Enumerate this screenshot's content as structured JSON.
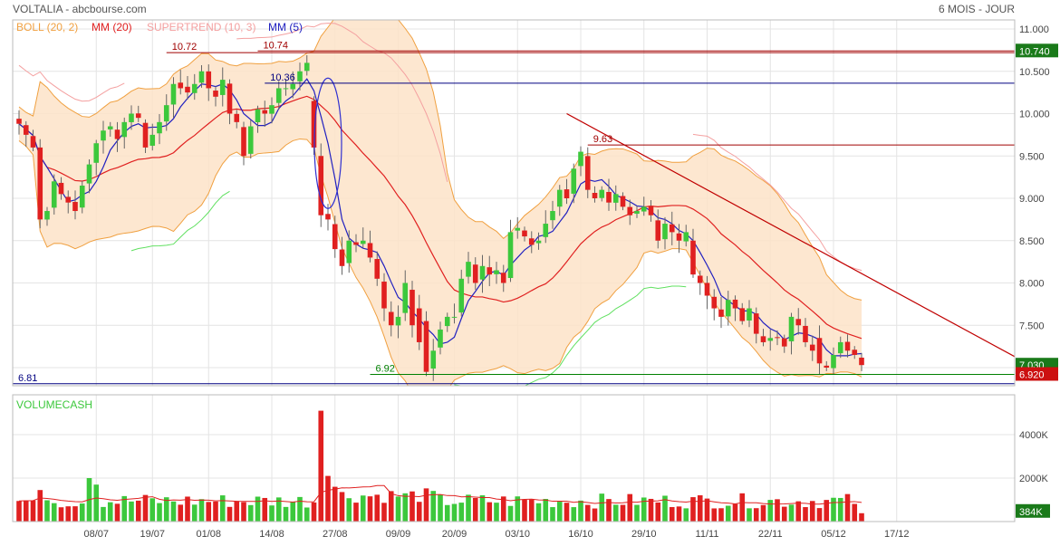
{
  "header": {
    "title": "VOLTALIA - abcbourse.com",
    "period": "6 MOIS - JOUR"
  },
  "legend": [
    {
      "label": "BOLL (20, 2)",
      "color": "#f0a040"
    },
    {
      "label": "MM (20)",
      "color": "#e02020"
    },
    {
      "label": "SUPERTREND (10, 3)",
      "color": "#f4a0a0"
    },
    {
      "label": "MM (5)",
      "color": "#2020c0"
    }
  ],
  "colors": {
    "up": "#3cc83c",
    "down": "#e02020",
    "boll_fill": "#fde3c8",
    "boll_line": "#f0a040",
    "mm20": "#e02020",
    "mm5": "#2020c0",
    "supertrend_down": "#f4a0a0",
    "supertrend_up": "#60e060",
    "level_red": "#a00000",
    "level_blue": "#000080",
    "level_green": "#008000",
    "trendline": "#c00000",
    "grid": "#e4e4e4"
  },
  "chart_data": [
    {
      "type": "candlestick",
      "title": "VOLTALIA - abcbourse.com",
      "ylim": [
        6.81,
        11.1
      ],
      "y_ticks": [
        "11.000",
        "10.500",
        "10.000",
        "9.500",
        "9.000",
        "8.500",
        "8.000",
        "7.500",
        "7.000"
      ],
      "y_tick_values": [
        11.0,
        10.5,
        10.0,
        9.5,
        9.0,
        8.5,
        8.0,
        7.5,
        7.0
      ],
      "x_labels": [
        "08/07",
        "19/07",
        "01/08",
        "14/08",
        "27/08",
        "09/09",
        "20/09",
        "03/10",
        "16/10",
        "29/10",
        "11/11",
        "22/11",
        "05/12",
        "17/12"
      ],
      "x_label_index": [
        11,
        19,
        27,
        36,
        45,
        54,
        62,
        71,
        80,
        89,
        98,
        107,
        116,
        125
      ],
      "grid": true,
      "close_key": [
        9.88,
        9.75,
        9.6,
        8.75,
        8.85,
        9.2,
        9.05,
        8.95,
        8.85,
        9.15,
        9.4,
        9.65,
        9.8,
        9.85,
        9.7,
        9.9,
        10.0,
        9.95,
        9.6,
        9.75,
        9.9,
        10.1,
        10.35,
        10.3,
        10.25,
        10.35,
        10.5,
        10.3,
        10.2,
        10.4,
        10.0,
        9.9,
        9.5,
        9.85,
        10.05,
        10.0,
        10.1,
        10.3,
        10.3,
        10.35,
        10.5,
        10.6,
        9.6,
        8.8,
        8.75,
        8.4,
        8.2,
        8.5,
        8.45,
        8.5,
        8.3,
        8.05,
        7.7,
        7.5,
        7.6,
        8.0,
        7.5,
        7.3,
        6.95,
        7.2,
        7.45,
        7.6,
        7.6,
        8.05,
        8.25,
        8.0,
        8.2,
        8.1,
        8.15,
        8.0,
        8.6,
        8.65,
        8.55,
        8.45,
        8.5,
        8.7,
        8.85,
        9.1,
        9.0,
        9.35,
        9.55,
        9.1,
        9.0,
        9.1,
        8.95,
        9.05,
        8.9,
        8.8,
        8.85,
        8.9,
        8.8,
        8.5,
        8.7,
        8.6,
        8.5,
        8.6,
        8.1,
        8.0,
        7.85,
        7.7,
        7.6,
        7.8,
        7.7,
        7.55,
        7.7,
        7.4,
        7.3,
        7.35,
        7.35,
        7.25,
        7.6,
        7.5,
        7.3,
        7.2,
        7.05,
        7.0,
        7.15,
        7.3,
        7.2,
        7.15,
        7.03
      ],
      "series": [
        {
          "name": "VOLTALIA",
          "last": 7.03
        },
        {
          "name": "BOLL (20, 2)"
        },
        {
          "name": "MM (20)"
        },
        {
          "name": "SUPERTREND (10, 3)"
        },
        {
          "name": "MM (5)"
        }
      ],
      "horizontal_levels": [
        {
          "label": "10.72",
          "value": 10.72,
          "color": "#a00000"
        },
        {
          "label": "10.74",
          "value": 10.74,
          "color": "#a00000"
        },
        {
          "label": "10.36",
          "value": 10.36,
          "color": "#000080"
        },
        {
          "label": "9.63",
          "value": 9.63,
          "color": "#a00000"
        },
        {
          "label": "6.92",
          "value": 6.92,
          "color": "#008000"
        },
        {
          "label": "6.81",
          "value": 6.81,
          "color": "#000080"
        }
      ],
      "right_badges": [
        {
          "label": "10.740",
          "value": 10.74,
          "color": "#1a7a1a"
        },
        {
          "label": "7.030",
          "value": 7.03,
          "color": "#1a7a1a"
        },
        {
          "label": "6.920",
          "value": 6.92,
          "color": "#cc1010"
        }
      ]
    },
    {
      "type": "bar",
      "title": "VOLUMECASH",
      "ylim": [
        0,
        5200
      ],
      "y_ticks": [
        "4000K",
        "2000K"
      ],
      "y_tick_values": [
        4000,
        2000
      ],
      "last_label": "384K",
      "last_value": 384,
      "grid": true
    }
  ]
}
